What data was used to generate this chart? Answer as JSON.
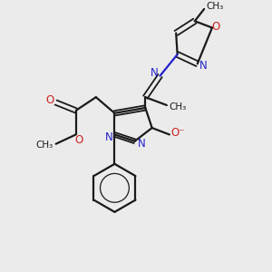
{
  "bg_color": "#ebebeb",
  "bond_color": "#1a1a1a",
  "N_color": "#2222cc",
  "O_color": "#cc2222",
  "figsize": [
    3.0,
    3.0
  ],
  "dpi": 100,
  "xlim": [
    0,
    10
  ],
  "ylim": [
    0,
    10
  ]
}
